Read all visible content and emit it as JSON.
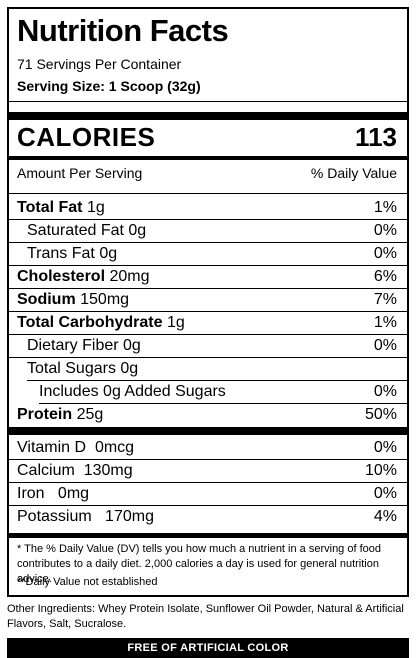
{
  "title": "Nutrition Facts",
  "servings_per_container": "71 Servings Per Container",
  "serving_size": "Serving Size: 1 Scoop (32g)",
  "calories": {
    "label": "CALORIES",
    "value": "113"
  },
  "header": {
    "left": "Amount Per Serving",
    "right": "% Daily Value"
  },
  "nutrients": [
    {
      "name": "Total Fat",
      "amount": "1g",
      "dv": "1%"
    },
    {
      "name": "Saturated Fat",
      "amount": "0g",
      "dv": "0%"
    },
    {
      "name": "Trans Fat",
      "amount": "0g",
      "dv": "0%"
    },
    {
      "name": "Cholesterol",
      "amount": "20mg",
      "dv": "6%"
    },
    {
      "name": "Sodium",
      "amount": "150mg",
      "dv": "7%"
    },
    {
      "name": "Total Carbohydrate",
      "amount": "1g",
      "dv": "1%"
    },
    {
      "name": "Dietary Fiber",
      "amount": "0g",
      "dv": "0%"
    },
    {
      "name": "Total Sugars",
      "amount": "0g",
      "dv": ""
    },
    {
      "name": "Includes 0g Added Sugars",
      "amount": "",
      "dv": "0%"
    },
    {
      "name": "Protein",
      "amount": "25g",
      "dv": "50%"
    }
  ],
  "vitamins": [
    {
      "name": "Vitamin D",
      "amount": "0mcg",
      "dv": "0%"
    },
    {
      "name": "Calcium",
      "amount": "130mg",
      "dv": "10%"
    },
    {
      "name": "Iron",
      "amount": "0mg",
      "dv": "0%"
    },
    {
      "name": "Potassium",
      "amount": "170mg",
      "dv": "4%"
    }
  ],
  "footnote_dv": "* The % Daily Value (DV) tells you how much a nutrient in a serving of food contributes to a daily diet. 2,000 calories a day is used for general nutrition advice.",
  "footnote_established": "**Daily Value not established",
  "other_ingredients": "Other Ingredients: Whey Protein Isolate, Sunflower Oil Powder, Natural & Artificial Flavors, Salt, Sucralose.",
  "banner": "FREE OF ARTIFICIAL COLOR"
}
